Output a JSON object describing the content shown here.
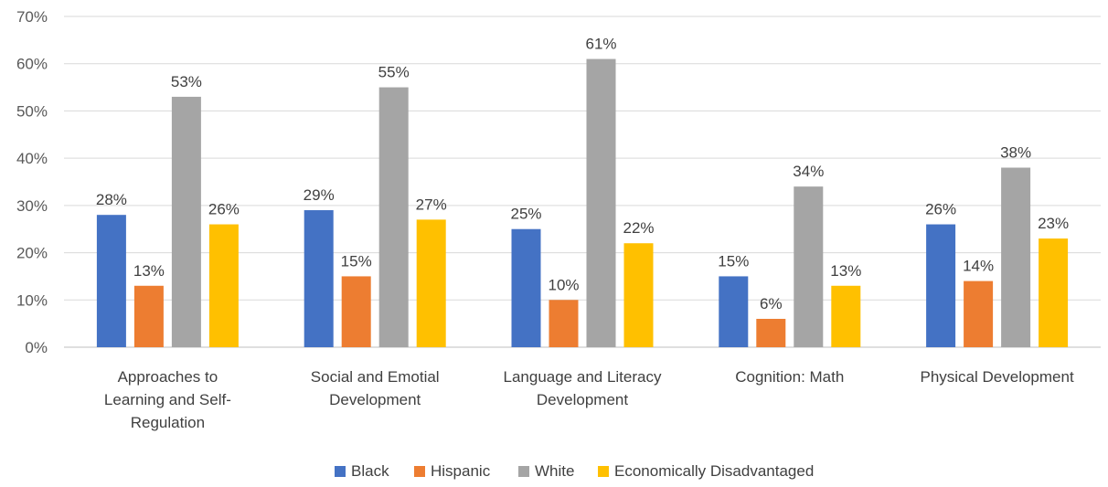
{
  "chart_data": {
    "type": "bar",
    "categories": [
      [
        "Approaches to",
        "Learning and Self-",
        "Regulation"
      ],
      [
        "Social and Emotial",
        "Development"
      ],
      [
        "Language and Literacy",
        "Development"
      ],
      [
        "Cognition: Math"
      ],
      [
        "Physical Development"
      ]
    ],
    "series": [
      {
        "name": "Black",
        "color": "#4472C4",
        "values": [
          28,
          29,
          25,
          15,
          26
        ],
        "labels": [
          "28%",
          "29%",
          "25%",
          "15%",
          "26%"
        ]
      },
      {
        "name": "Hispanic",
        "color": "#ED7D31",
        "values": [
          13,
          15,
          10,
          6,
          14
        ],
        "labels": [
          "13%",
          "15%",
          "10%",
          "6%",
          "14%"
        ]
      },
      {
        "name": "White",
        "color": "#A5A5A5",
        "values": [
          53,
          55,
          61,
          34,
          38
        ],
        "labels": [
          "53%",
          "55%",
          "61%",
          "34%",
          "38%"
        ]
      },
      {
        "name": "Economically Disadvantaged",
        "color": "#FFC000",
        "values": [
          26,
          27,
          22,
          13,
          23
        ],
        "labels": [
          "26%",
          "27%",
          "22%",
          "13%",
          "23%"
        ]
      }
    ],
    "yticks": [
      "0%",
      "10%",
      "20%",
      "30%",
      "40%",
      "50%",
      "60%",
      "70%"
    ],
    "ylim": [
      0,
      70
    ],
    "grid": true,
    "legend_position": "bottom"
  }
}
